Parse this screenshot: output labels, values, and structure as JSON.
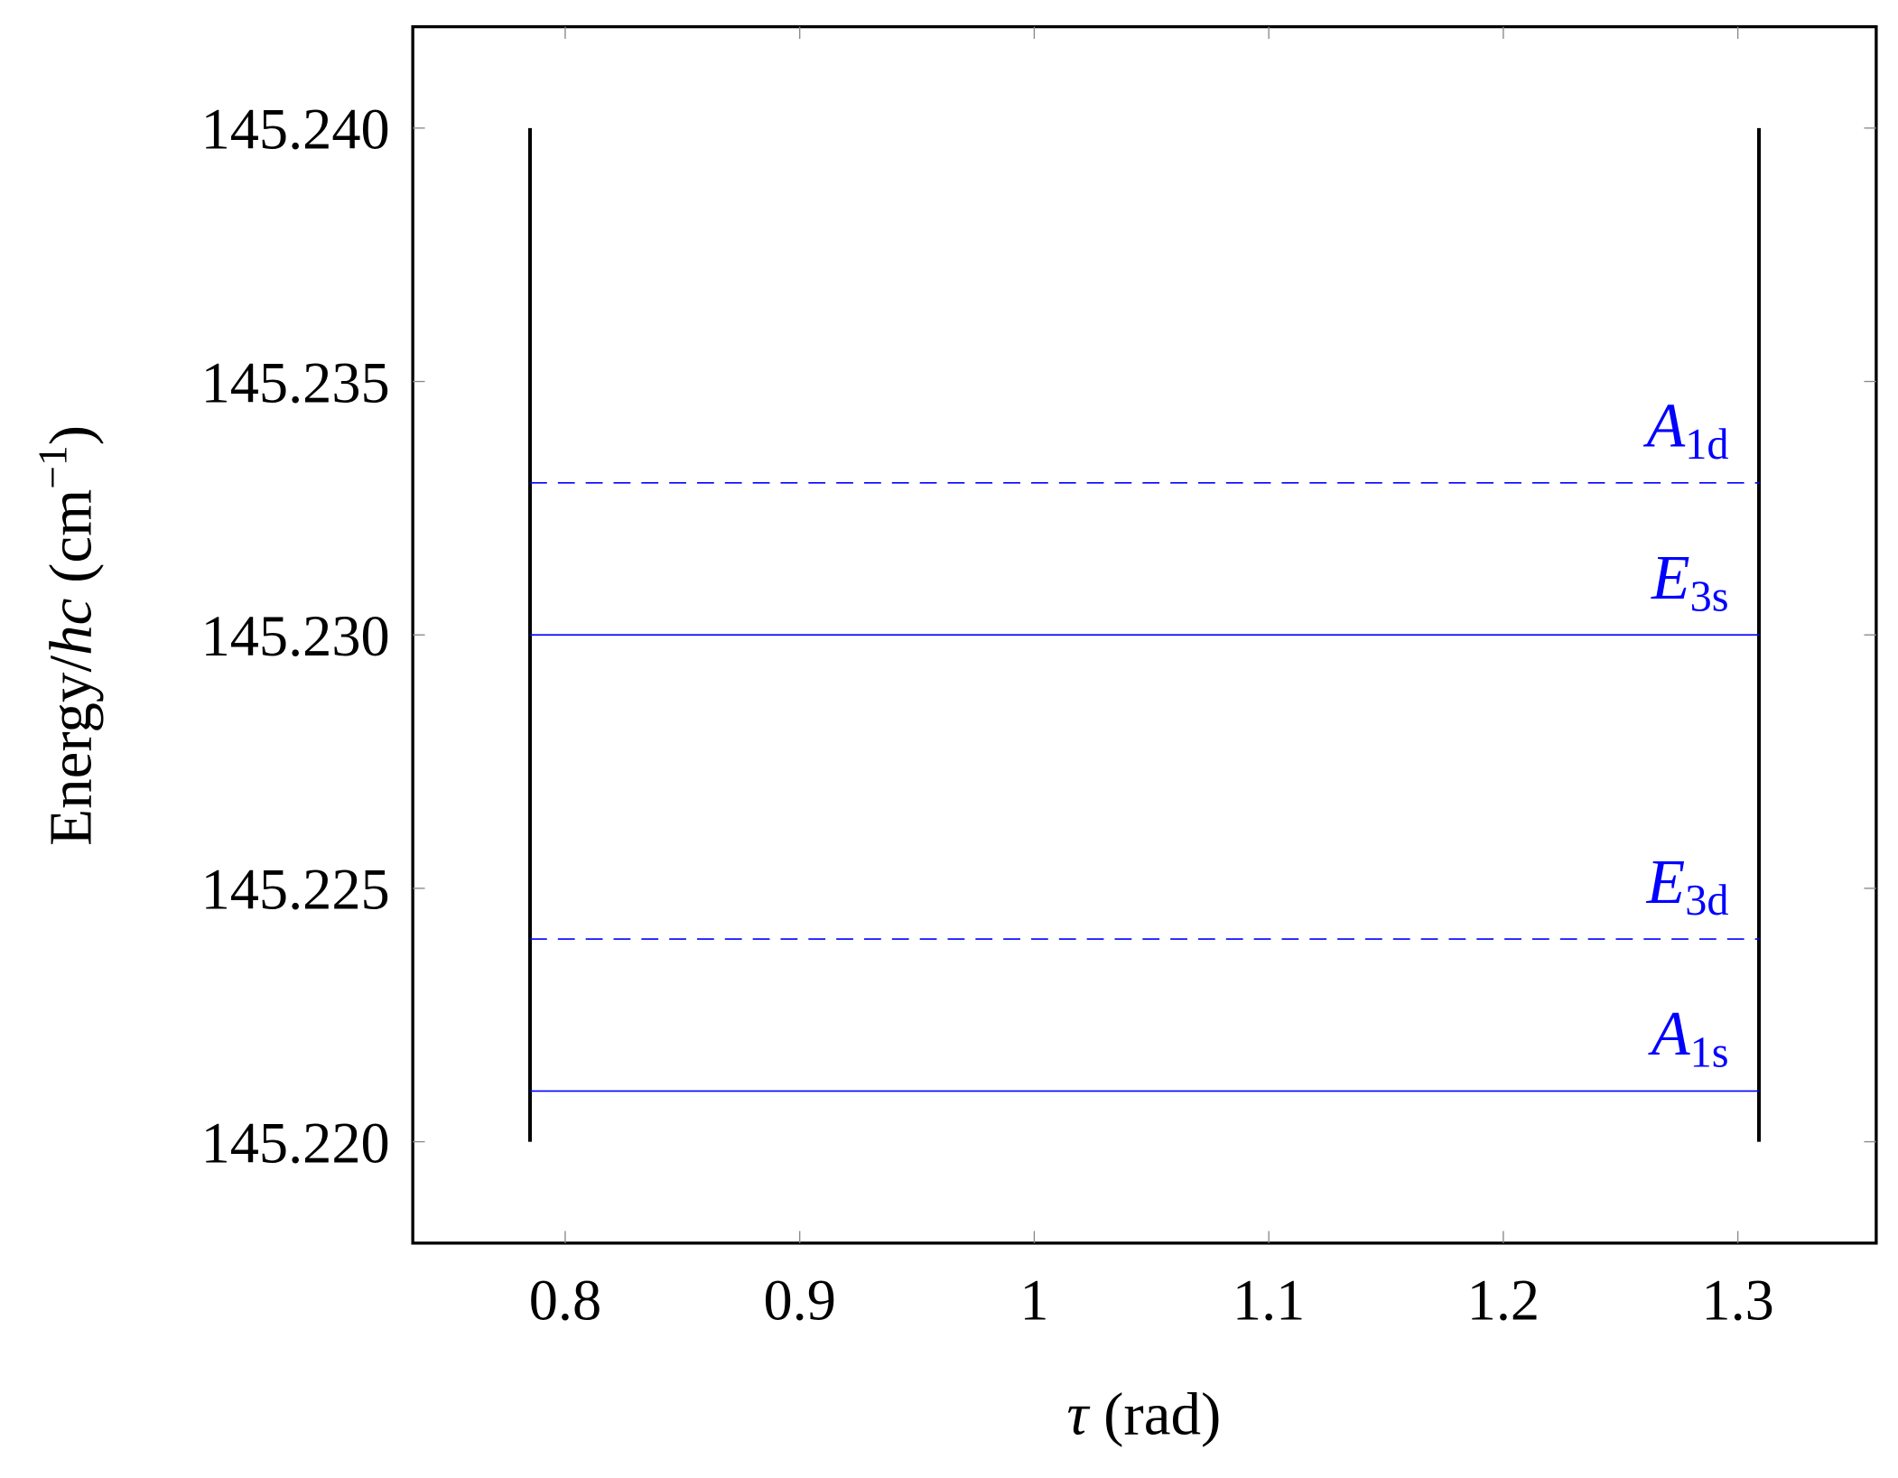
{
  "chart_data": {
    "type": "line",
    "xlabel": [
      "τ",
      " (rad)"
    ],
    "ylabel": [
      "Energy/",
      "hc",
      " (cm",
      "−1",
      ")"
    ],
    "xlim": [
      0.735,
      1.359
    ],
    "ylim": [
      145.218,
      145.242
    ],
    "xticks": [
      0.8,
      0.9,
      1,
      1.1,
      1.2,
      1.3
    ],
    "yticks": [
      {
        "value": 145.22,
        "label": "145.220"
      },
      {
        "value": 145.225,
        "label": "145.225"
      },
      {
        "value": 145.23,
        "label": "145.230"
      },
      {
        "value": 145.235,
        "label": "145.235"
      },
      {
        "value": 145.24,
        "label": "145.240"
      }
    ],
    "series": [
      {
        "color": "#000000",
        "x": [
          0.785,
          0.785
        ],
        "values": [
          145.22,
          145.24
        ],
        "style": "solid"
      },
      {
        "color": "#000000",
        "x": [
          1.309,
          1.309
        ],
        "values": [
          145.22,
          145.24
        ],
        "style": "solid"
      },
      {
        "name": "A",
        "subscript": "1d",
        "color": "#0000ff",
        "x": [
          0.785,
          1.309
        ],
        "values": [
          145.233,
          145.233
        ],
        "style": "dashed"
      },
      {
        "name": "E",
        "subscript": "3s",
        "color": "#0000ff",
        "x": [
          0.785,
          1.309
        ],
        "values": [
          145.23,
          145.23
        ],
        "style": "solid"
      },
      {
        "name": "E",
        "subscript": "3d",
        "color": "#0000ff",
        "x": [
          0.785,
          1.309
        ],
        "values": [
          145.224,
          145.224
        ],
        "style": "dashed"
      },
      {
        "name": "A",
        "subscript": "1s",
        "color": "#0000ff",
        "x": [
          0.785,
          1.309
        ],
        "values": [
          145.221,
          145.221
        ],
        "style": "solid"
      }
    ]
  }
}
